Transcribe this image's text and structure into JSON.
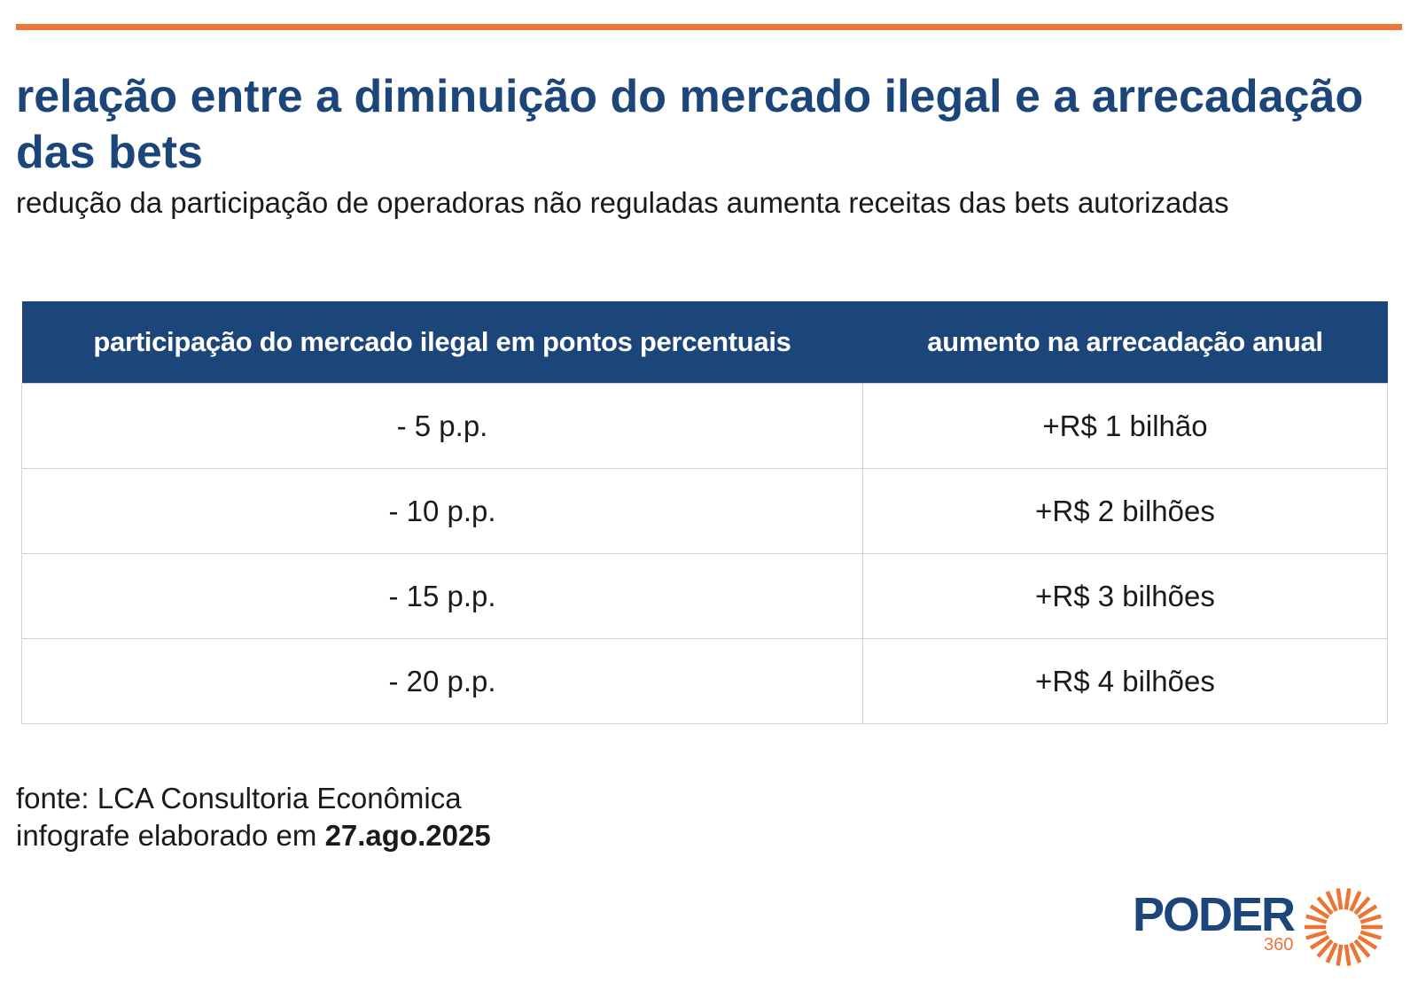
{
  "colors": {
    "accent_bar": "#ec7536",
    "header_bg": "#1c4679",
    "title": "#1c4679",
    "logo_orange": "#ec7536"
  },
  "header": {
    "title": "relação entre a diminuição do mercado ilegal e a arrecadação das bets",
    "subtitle": "redução da participação de operadoras não reguladas aumenta receitas das bets autorizadas"
  },
  "chart_data": {
    "type": "table",
    "columns": [
      "participação do mercado ilegal em pontos percentuais",
      "aumento na arrecadação anual"
    ],
    "rows": [
      [
        "- 5 p.p.",
        "+R$ 1 bilhão"
      ],
      [
        "- 10 p.p.",
        "+R$ 2 bilhões"
      ],
      [
        "- 15 p.p.",
        "+R$ 3 bilhões"
      ],
      [
        "- 20 p.p.",
        "+R$ 4 bilhões"
      ]
    ]
  },
  "footer": {
    "source": "fonte: LCA Consultoria Econômica",
    "date_prefix": "infografe elaborado em ",
    "date": "27.ago.2025"
  },
  "logo": {
    "word": "PODER",
    "number": "360",
    "icon": "sunburst-icon"
  }
}
